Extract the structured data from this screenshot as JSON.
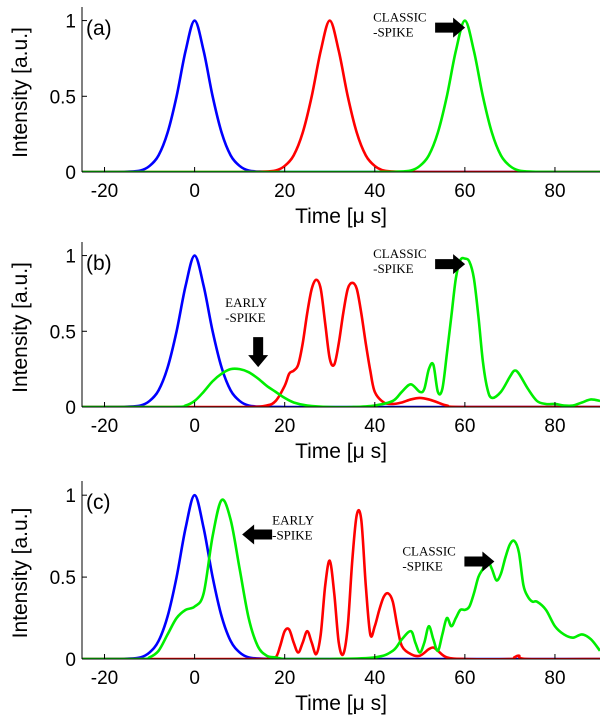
{
  "chart_data": [
    {
      "type": "line",
      "panel_label": "(a)",
      "xlabel": "Time [μ s]",
      "ylabel": "Intensity [a.u.]",
      "xlim": [
        -25,
        90
      ],
      "ylim": [
        0,
        1.05
      ],
      "xticks": [
        "-20",
        "0",
        "20",
        "40",
        "60",
        "80"
      ],
      "xtick_values": [
        -20,
        0,
        20,
        40,
        60,
        80
      ],
      "yticks": [
        "0",
        "0.5",
        "1"
      ],
      "ytick_values": [
        0,
        0.5,
        1
      ],
      "series": [
        {
          "color": "#0000ff",
          "x": [
            -25,
            -20,
            -15,
            -12,
            -10,
            -8,
            -6,
            -4,
            -2,
            0,
            2,
            4,
            6,
            8,
            10,
            12,
            15,
            20,
            25,
            40,
            60,
            90
          ],
          "y": [
            0,
            0,
            0.002,
            0.01,
            0.04,
            0.11,
            0.26,
            0.5,
            0.8,
            1.0,
            0.8,
            0.5,
            0.26,
            0.11,
            0.04,
            0.01,
            0.002,
            0,
            0,
            0,
            0,
            0
          ]
        },
        {
          "color": "#ff0000",
          "x": [
            -25,
            0,
            10,
            15,
            18,
            20,
            22,
            24,
            26,
            28,
            30,
            32,
            34,
            36,
            38,
            40,
            42,
            45,
            50,
            60,
            90
          ],
          "y": [
            0,
            0,
            0,
            0.002,
            0.01,
            0.04,
            0.11,
            0.26,
            0.5,
            0.8,
            1.0,
            0.8,
            0.5,
            0.26,
            0.11,
            0.04,
            0.01,
            0.002,
            0,
            0,
            0
          ]
        },
        {
          "color": "#00ee00",
          "x": [
            -25,
            0,
            20,
            40,
            45,
            48,
            50,
            52,
            54,
            56,
            58,
            60,
            62,
            64,
            66,
            68,
            70,
            72,
            75,
            80,
            90
          ],
          "y": [
            0,
            0,
            0,
            0,
            0.002,
            0.01,
            0.04,
            0.11,
            0.26,
            0.5,
            0.8,
            1.0,
            0.8,
            0.5,
            0.26,
            0.11,
            0.04,
            0.01,
            0.002,
            0,
            0
          ]
        }
      ],
      "annotations": [
        {
          "lines": [
            "CLASSIC",
            "-SPIKE"
          ],
          "arrow": "right",
          "target_x": 60.5,
          "target_y": 0.98
        }
      ]
    },
    {
      "type": "line",
      "panel_label": "(b)",
      "xlabel": "Time [μ s]",
      "ylabel": "Intensity [a.u.]",
      "xlim": [
        -25,
        90
      ],
      "ylim": [
        0,
        1.05
      ],
      "xticks": [
        "-20",
        "0",
        "20",
        "40",
        "60",
        "80"
      ],
      "xtick_values": [
        -20,
        0,
        20,
        40,
        60,
        80
      ],
      "yticks": [
        "0",
        "0.5",
        "1"
      ],
      "ytick_values": [
        0,
        0.5,
        1
      ],
      "series": [
        {
          "color": "#0000ff",
          "x": [
            -25,
            -20,
            -15,
            -12,
            -10,
            -8,
            -6,
            -4,
            -2,
            0,
            2,
            4,
            6,
            8,
            10,
            12,
            15,
            20,
            25,
            40,
            60,
            90
          ],
          "y": [
            0,
            0,
            0.002,
            0.01,
            0.04,
            0.11,
            0.26,
            0.5,
            0.8,
            1.0,
            0.8,
            0.5,
            0.26,
            0.11,
            0.04,
            0.01,
            0.002,
            0,
            0,
            0,
            0,
            0
          ]
        },
        {
          "color": "#ff0000",
          "x": [
            -25,
            0,
            12,
            16,
            18,
            20,
            21,
            22,
            23,
            24,
            25,
            26,
            27,
            28,
            29,
            30,
            31,
            32,
            33,
            34,
            35,
            36,
            37,
            38,
            39,
            40,
            42,
            44,
            46,
            48,
            50,
            52,
            54,
            56,
            60,
            90
          ],
          "y": [
            0,
            0,
            0,
            0.01,
            0.04,
            0.14,
            0.22,
            0.24,
            0.28,
            0.42,
            0.62,
            0.78,
            0.84,
            0.78,
            0.55,
            0.32,
            0.28,
            0.42,
            0.62,
            0.78,
            0.82,
            0.78,
            0.62,
            0.42,
            0.24,
            0.1,
            0.03,
            0.02,
            0.03,
            0.05,
            0.06,
            0.05,
            0.03,
            0.01,
            0,
            0
          ]
        },
        {
          "color": "#00ee00",
          "x": [
            -25,
            -5,
            -2,
            0,
            2,
            4,
            6,
            8,
            10,
            12,
            14,
            16,
            18,
            20,
            22,
            25,
            30,
            35,
            40,
            44,
            46,
            48,
            50,
            51,
            52,
            53,
            54,
            55,
            56,
            57,
            58,
            59,
            60,
            61,
            62,
            63,
            64,
            65,
            66,
            68,
            70,
            71,
            72,
            74,
            76,
            78,
            80,
            82,
            84,
            86,
            88,
            90
          ],
          "y": [
            0,
            0,
            0.01,
            0.04,
            0.1,
            0.17,
            0.22,
            0.25,
            0.25,
            0.23,
            0.19,
            0.14,
            0.1,
            0.06,
            0.03,
            0.01,
            0,
            0,
            0.01,
            0.04,
            0.1,
            0.15,
            0.1,
            0.12,
            0.25,
            0.28,
            0.1,
            0.12,
            0.35,
            0.6,
            0.85,
            0.97,
            0.98,
            0.96,
            0.85,
            0.6,
            0.3,
            0.12,
            0.06,
            0.1,
            0.2,
            0.24,
            0.22,
            0.12,
            0.04,
            0.02,
            0.02,
            0.01,
            0.01,
            0.03,
            0.05,
            0.04
          ]
        }
      ],
      "annotations": [
        {
          "lines": [
            "CLASSIC",
            "-SPIKE"
          ],
          "arrow": "right",
          "target_x": 60.5,
          "target_y": 0.97
        },
        {
          "lines": [
            "EARLY",
            "-SPIKE"
          ],
          "arrow": "down",
          "target_x": 13,
          "target_y": 0.25
        }
      ]
    },
    {
      "type": "line",
      "panel_label": "(c)",
      "xlabel": "Time [μ s]",
      "ylabel": "Intensity [a.u.]",
      "xlim": [
        -25,
        90
      ],
      "ylim": [
        0,
        1.05
      ],
      "xticks": [
        "-20",
        "0",
        "20",
        "40",
        "60",
        "80"
      ],
      "xtick_values": [
        -20,
        0,
        20,
        40,
        60,
        80
      ],
      "yticks": [
        "0",
        "0.5",
        "1"
      ],
      "ytick_values": [
        0,
        0.5,
        1
      ],
      "series": [
        {
          "color": "#0000ff",
          "x": [
            -25,
            -20,
            -15,
            -12,
            -10,
            -8,
            -6,
            -4,
            -2,
            0,
            2,
            4,
            6,
            8,
            10,
            12,
            15,
            20,
            25,
            40,
            60,
            90
          ],
          "y": [
            0,
            0,
            0.002,
            0.01,
            0.04,
            0.11,
            0.26,
            0.5,
            0.8,
            1.0,
            0.8,
            0.5,
            0.26,
            0.11,
            0.04,
            0.01,
            0.002,
            0,
            0,
            0,
            0,
            0
          ]
        },
        {
          "color": "#ff0000",
          "x": [
            -25,
            0,
            16,
            18,
            19,
            20,
            21,
            22,
            23,
            24,
            25,
            26,
            27,
            28,
            29,
            30,
            31,
            32,
            33,
            34,
            35,
            36,
            37,
            38,
            39,
            40,
            41,
            42,
            43,
            44,
            45,
            46,
            48,
            50,
            52,
            53,
            54,
            56,
            60,
            70,
            71,
            72,
            74,
            90
          ],
          "y": [
            0,
            0,
            0,
            0.01,
            0.08,
            0.17,
            0.18,
            0.1,
            0.04,
            0.1,
            0.17,
            0.1,
            0.03,
            0.15,
            0.45,
            0.6,
            0.4,
            0.1,
            0.03,
            0.2,
            0.6,
            0.88,
            0.85,
            0.45,
            0.15,
            0.2,
            0.3,
            0.38,
            0.4,
            0.35,
            0.2,
            0.08,
            0.03,
            0.02,
            0.06,
            0.07,
            0.05,
            0.01,
            0,
            0,
            0.01,
            0.02,
            0,
            0
          ]
        },
        {
          "color": "#00ee00",
          "x": [
            -25,
            -12,
            -10,
            -8,
            -6,
            -4,
            -2,
            0,
            2,
            4,
            6,
            8,
            10,
            12,
            14,
            16,
            18,
            20,
            25,
            30,
            40,
            44,
            46,
            48,
            49,
            50,
            51,
            52,
            53,
            54,
            55,
            56,
            57,
            58,
            59,
            60,
            61,
            62,
            63,
            64,
            65,
            66,
            67,
            68,
            69,
            70,
            71,
            72,
            73,
            74,
            75,
            76,
            78,
            80,
            82,
            84,
            86,
            88,
            90
          ],
          "y": [
            0,
            0,
            0.01,
            0.05,
            0.15,
            0.25,
            0.3,
            0.32,
            0.4,
            0.75,
            0.97,
            0.85,
            0.55,
            0.25,
            0.08,
            0.02,
            0.01,
            0,
            0,
            0,
            0.01,
            0.05,
            0.12,
            0.17,
            0.1,
            0.04,
            0.1,
            0.2,
            0.12,
            0.05,
            0.15,
            0.25,
            0.2,
            0.25,
            0.3,
            0.3,
            0.32,
            0.4,
            0.5,
            0.55,
            0.6,
            0.55,
            0.48,
            0.52,
            0.62,
            0.7,
            0.72,
            0.65,
            0.45,
            0.38,
            0.35,
            0.35,
            0.3,
            0.2,
            0.15,
            0.13,
            0.15,
            0.12,
            0.05
          ]
        }
      ],
      "annotations": [
        {
          "lines": [
            "CLASSIC",
            "-SPIKE"
          ],
          "arrow": "right",
          "target_x": 67,
          "target_y": 0.62
        },
        {
          "lines": [
            "EARLY",
            "-SPIKE"
          ],
          "arrow": "left",
          "target_x": 5,
          "target_y": 0.76
        }
      ]
    }
  ]
}
